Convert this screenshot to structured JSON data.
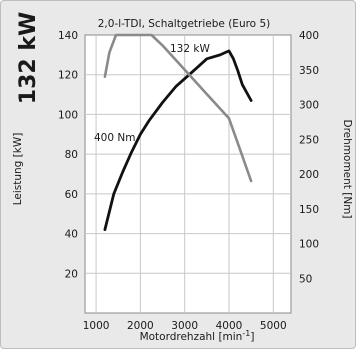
{
  "chart_data": {
    "type": "line",
    "title": "2,0-l-TDI, Schaltgetriebe (Euro 5)",
    "side_label": "132 kW",
    "xlabel": "Motordrehzahl [min-1]",
    "xlabel_main": "Motordrehzahl [min",
    "xlabel_sup": "-1",
    "xlabel_close": "]",
    "ylabel_left": "Leistung [kW]",
    "ylabel_right": "Drehmoment [Nm]",
    "x_ticks": [
      "1000",
      "2000",
      "3000",
      "4000",
      "5000"
    ],
    "x_tick_values": [
      1000,
      2000,
      3000,
      4000,
      5000
    ],
    "y_left_ticks": [
      "20",
      "40",
      "60",
      "80",
      "100",
      "120",
      "140"
    ],
    "y_left_tick_values": [
      20,
      40,
      60,
      80,
      100,
      120,
      140
    ],
    "y_right_ticks": [
      "50",
      "100",
      "150",
      "200",
      "250",
      "300",
      "350",
      "400"
    ],
    "y_right_tick_values": [
      50,
      100,
      150,
      200,
      250,
      300,
      350,
      400
    ],
    "xlim": [
      750,
      5400
    ],
    "ylim_left": [
      0,
      140
    ],
    "ylim_right": [
      0,
      400
    ],
    "annotations": {
      "power_peak": "132 kW",
      "torque_peak": "400 Nm"
    },
    "series": [
      {
        "name": "Leistung",
        "axis": "left",
        "color": "#111111",
        "x": [
          1200,
          1400,
          1600,
          1800,
          2000,
          2200,
          2500,
          2800,
          3000,
          3300,
          3500,
          3800,
          3900,
          4000,
          4100,
          4200,
          4300,
          4500
        ],
        "y": [
          42,
          60,
          71,
          81,
          90,
          97,
          106,
          114,
          118,
          124,
          128,
          130,
          131,
          132,
          128,
          122,
          115,
          107
        ]
      },
      {
        "name": "Drehmoment",
        "axis": "right",
        "color": "#8a8a8a",
        "x": [
          1200,
          1300,
          1450,
          1750,
          2000,
          2250,
          2500,
          3000,
          3500,
          4000,
          4250,
          4500
        ],
        "y": [
          340,
          375,
          400,
          400,
          400,
          400,
          385,
          350,
          315,
          280,
          235,
          190
        ]
      }
    ]
  }
}
